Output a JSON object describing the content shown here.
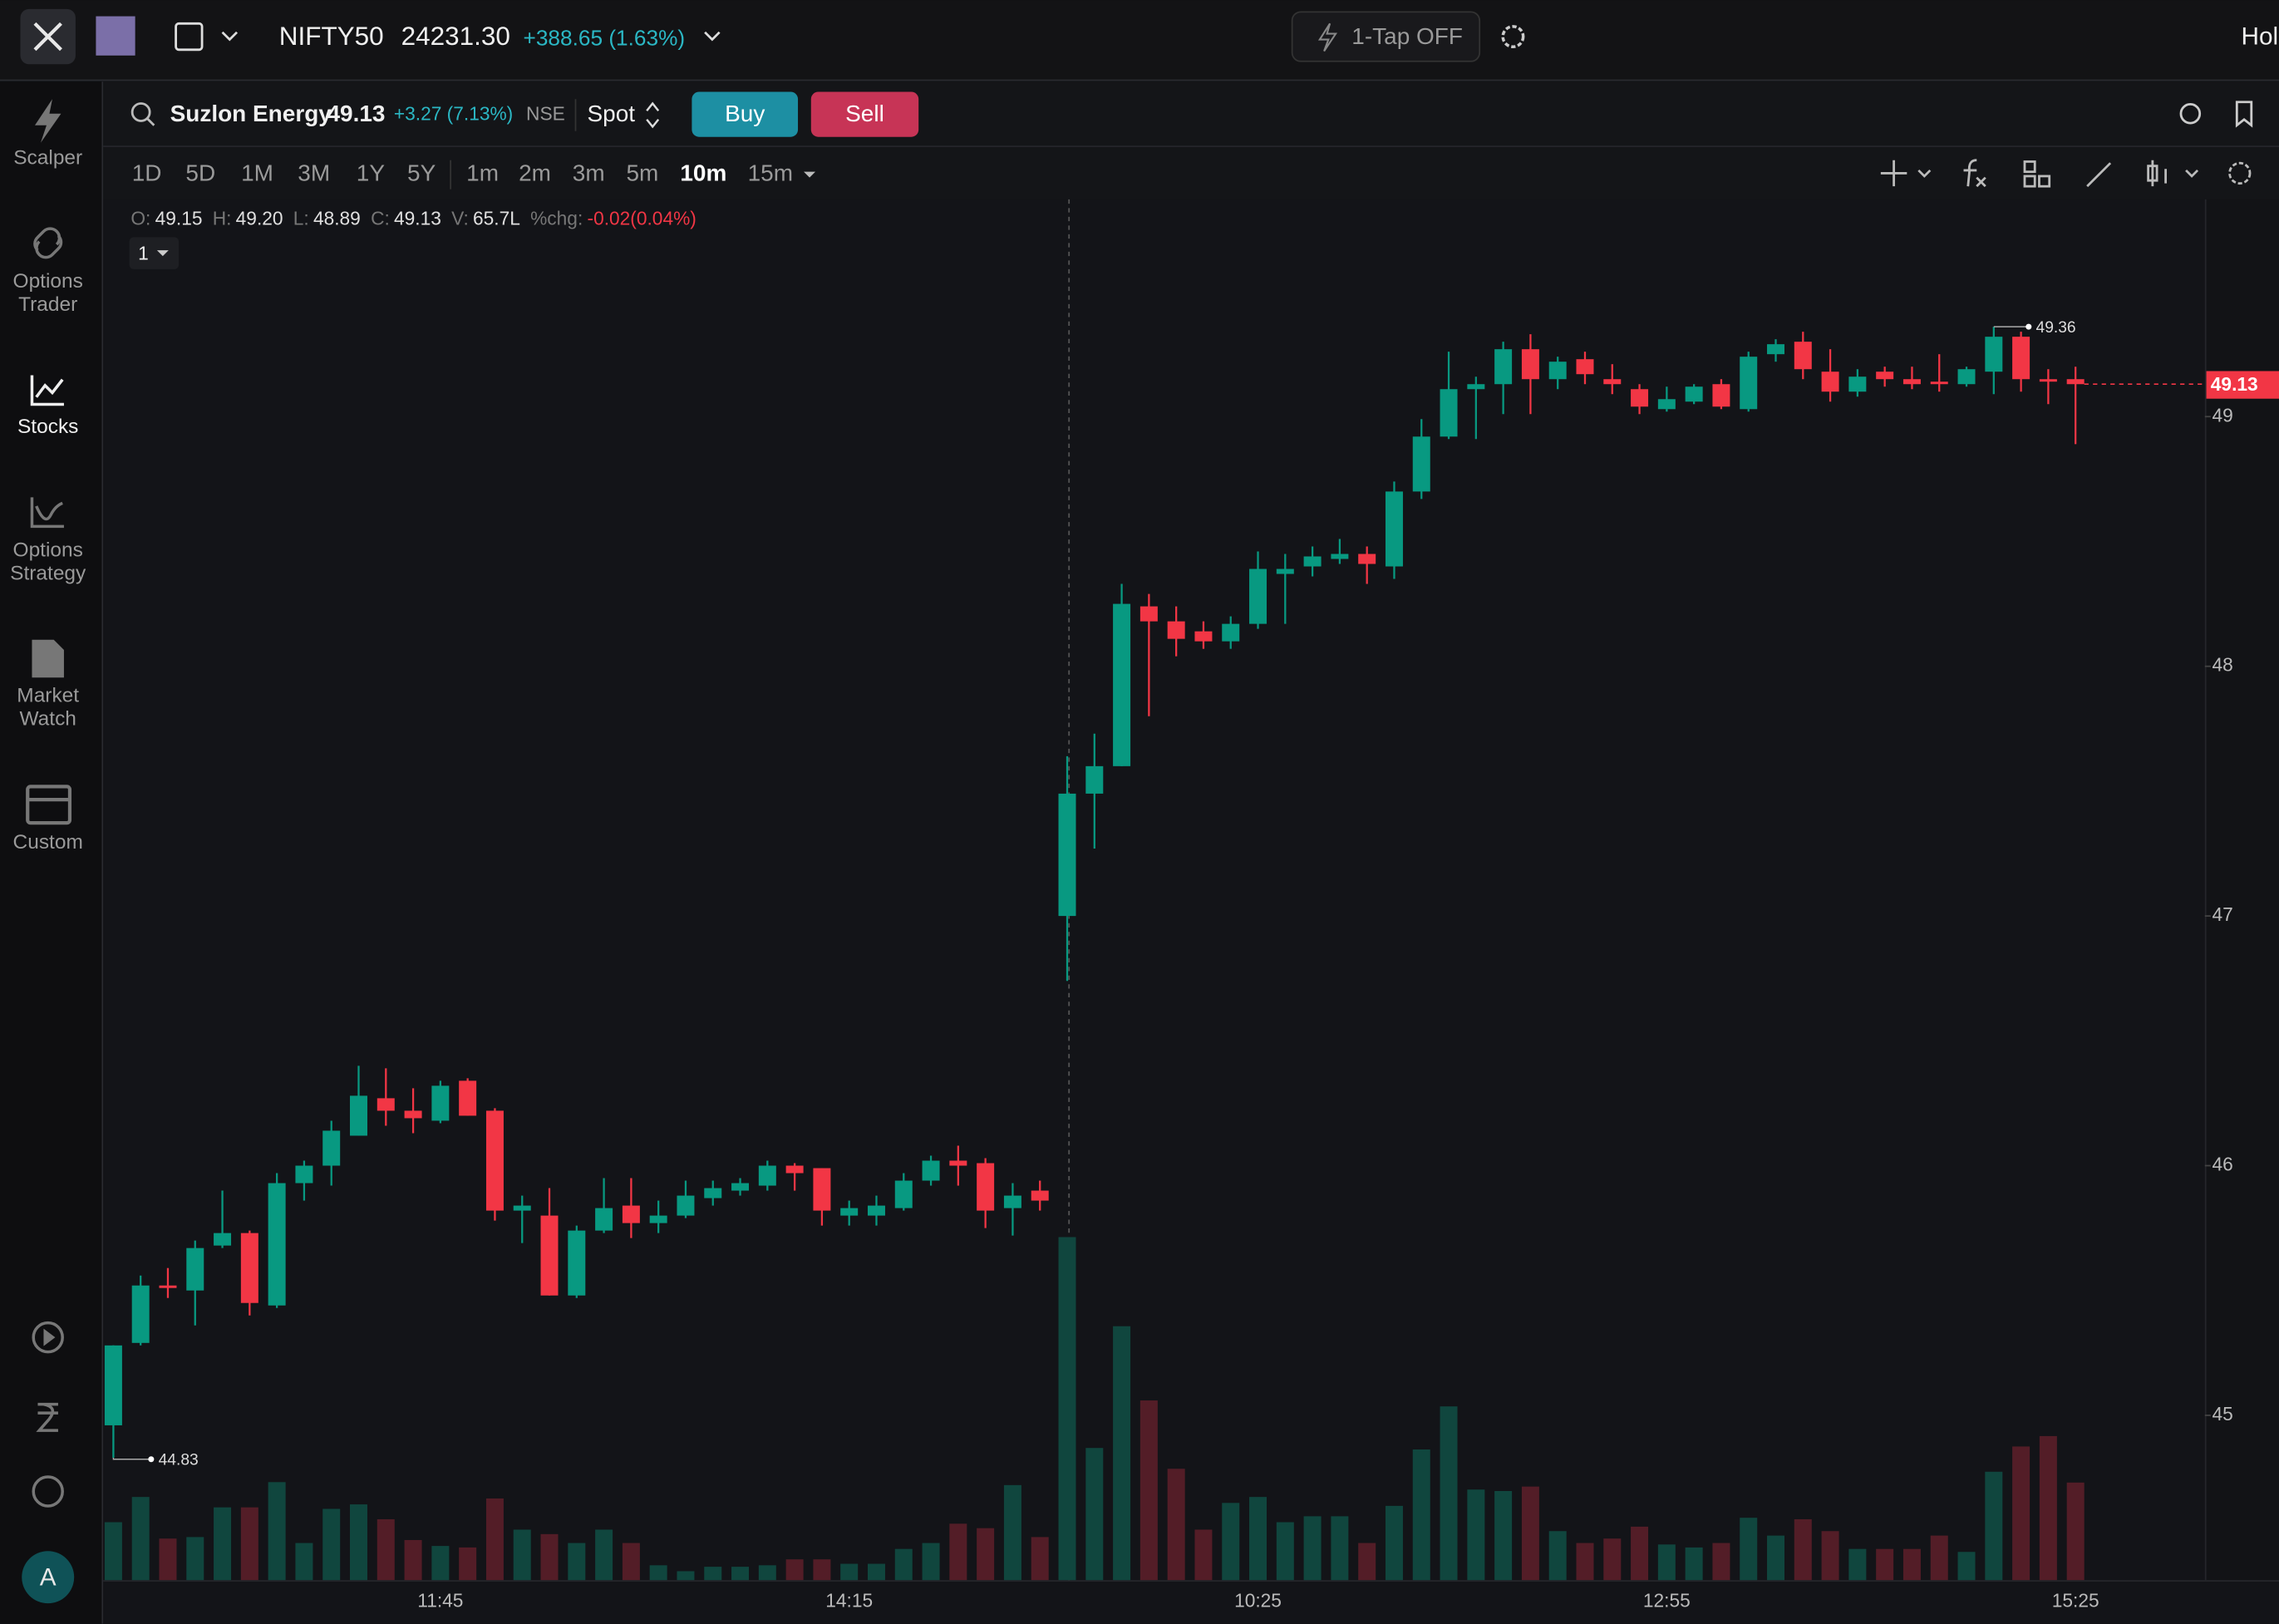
{
  "top_bar": {
    "index_name": "NIFTY50",
    "index_value": "24231.30",
    "index_change": "+388.65 (1.63%)",
    "one_tap": "1-Tap OFF",
    "cut_text": "Hol"
  },
  "sidebar": {
    "items": [
      {
        "lines": [
          "Scalper"
        ]
      },
      {
        "lines": [
          "Options",
          "Trader"
        ]
      },
      {
        "lines": [
          "Stocks"
        ]
      },
      {
        "lines": [
          "Options",
          "Strategy"
        ]
      },
      {
        "lines": [
          "Market",
          "Watch"
        ]
      },
      {
        "lines": [
          "Custom"
        ]
      }
    ],
    "avatar": "A"
  },
  "symbol_bar": {
    "name": "Suzlon Energy",
    "price": "49.13",
    "change": "+3.27 (7.13%)",
    "exchange": "NSE",
    "mode": "Spot",
    "buy": "Buy",
    "sell": "Sell"
  },
  "timeframes": {
    "ranges": [
      "1D",
      "5D",
      "1M",
      "3M",
      "1Y",
      "5Y"
    ],
    "intervals": [
      "1m",
      "2m",
      "3m",
      "5m",
      "10m",
      "15m"
    ],
    "active": "10m"
  },
  "legend": [
    {
      "key": "O:",
      "value": "49.15"
    },
    {
      "key": "H:",
      "value": "49.20"
    },
    {
      "key": "L:",
      "value": "48.89"
    },
    {
      "key": "C:",
      "value": "49.13"
    },
    {
      "key": "V:",
      "value": "65.7L"
    },
    {
      "key": "%chg:",
      "value": "-0.02(0.04%)"
    }
  ],
  "pane_selector": "1",
  "chart_data": {
    "type": "candlestick",
    "categories": [
      null,
      null,
      null,
      null,
      null,
      null,
      null,
      null,
      null,
      null,
      null,
      null,
      "11:45",
      null,
      null,
      null,
      null,
      null,
      null,
      null,
      null,
      null,
      null,
      null,
      null,
      null,
      null,
      "14:15",
      null,
      null,
      null,
      null,
      null,
      null,
      null,
      null,
      null,
      null,
      null,
      null,
      null,
      null,
      "10:25",
      null,
      null,
      null,
      null,
      null,
      null,
      null,
      null,
      null,
      null,
      null,
      null,
      null,
      null,
      "12:55",
      null,
      null,
      null,
      null,
      null,
      null,
      null,
      null,
      null,
      null,
      null,
      null,
      null,
      null,
      "15:25"
    ],
    "open": [
      44.96,
      45.29,
      45.52,
      45.5,
      45.68,
      45.73,
      45.44,
      45.93,
      46.0,
      46.12,
      46.27,
      46.22,
      46.18,
      46.34,
      46.22,
      45.82,
      45.8,
      45.48,
      45.74,
      45.84,
      45.77,
      45.8,
      45.87,
      45.9,
      45.92,
      46.0,
      45.99,
      45.8,
      45.8,
      45.83,
      45.94,
      46.02,
      46.01,
      45.83,
      45.9,
      47.0,
      47.49,
      47.6,
      48.24,
      48.18,
      48.14,
      48.1,
      48.17,
      48.37,
      48.4,
      48.43,
      48.45,
      48.4,
      48.7,
      48.92,
      49.11,
      49.13,
      49.27,
      49.15,
      49.23,
      49.15,
      49.11,
      49.03,
      49.06,
      49.13,
      49.03,
      49.25,
      49.3,
      49.18,
      49.1,
      49.18,
      49.15,
      49.14,
      49.13,
      49.18,
      49.32,
      49.15,
      49.15
    ],
    "high": [
      45.28,
      45.56,
      45.59,
      45.7,
      45.9,
      45.74,
      45.97,
      46.02,
      46.18,
      46.4,
      46.39,
      46.31,
      46.34,
      46.35,
      46.23,
      45.88,
      45.91,
      45.76,
      45.95,
      45.95,
      45.86,
      45.94,
      45.94,
      45.95,
      46.02,
      46.01,
      45.99,
      45.86,
      45.88,
      45.97,
      46.04,
      46.08,
      46.03,
      45.93,
      45.94,
      47.64,
      47.73,
      48.33,
      48.29,
      48.24,
      48.18,
      48.2,
      48.46,
      48.45,
      48.48,
      48.51,
      48.48,
      48.74,
      48.99,
      49.26,
      49.16,
      49.3,
      49.33,
      49.24,
      49.26,
      49.21,
      49.13,
      49.12,
      49.13,
      49.15,
      49.26,
      49.31,
      49.34,
      49.27,
      49.19,
      49.2,
      49.2,
      49.25,
      49.2,
      49.36,
      49.34,
      49.19,
      49.2
    ],
    "low": [
      44.83,
      45.28,
      45.47,
      45.36,
      45.67,
      45.4,
      45.43,
      45.86,
      45.92,
      46.12,
      46.16,
      46.13,
      46.17,
      46.2,
      45.78,
      45.69,
      45.48,
      45.47,
      45.73,
      45.71,
      45.73,
      45.79,
      45.84,
      45.88,
      45.9,
      45.9,
      45.76,
      45.76,
      45.76,
      45.82,
      45.92,
      45.92,
      45.75,
      45.72,
      45.82,
      46.74,
      47.27,
      47.6,
      47.8,
      48.04,
      48.07,
      48.07,
      48.15,
      48.17,
      48.36,
      48.41,
      48.33,
      48.35,
      48.67,
      48.91,
      48.91,
      49.01,
      49.01,
      49.11,
      49.13,
      49.09,
      49.01,
      49.02,
      49.05,
      49.03,
      49.02,
      49.22,
      49.15,
      49.06,
      49.08,
      49.12,
      49.11,
      49.1,
      49.12,
      49.09,
      49.1,
      49.05,
      48.89
    ],
    "close": [
      45.28,
      45.52,
      45.51,
      45.67,
      45.73,
      45.45,
      45.93,
      46.0,
      46.14,
      46.28,
      46.22,
      46.19,
      46.32,
      46.2,
      45.82,
      45.84,
      45.48,
      45.74,
      45.83,
      45.77,
      45.8,
      45.88,
      45.91,
      45.93,
      46.0,
      45.97,
      45.82,
      45.83,
      45.84,
      45.94,
      46.02,
      46.0,
      45.82,
      45.88,
      45.86,
      47.49,
      47.6,
      48.25,
      48.18,
      48.11,
      48.1,
      48.17,
      48.39,
      48.39,
      48.44,
      48.45,
      48.41,
      48.7,
      48.92,
      49.11,
      49.13,
      49.27,
      49.15,
      49.22,
      49.17,
      49.13,
      49.04,
      49.07,
      49.12,
      49.04,
      49.24,
      49.29,
      49.19,
      49.1,
      49.16,
      49.15,
      49.13,
      49.13,
      49.19,
      49.32,
      49.15,
      49.14,
      49.13
    ],
    "volume": [
      39,
      56,
      28,
      29,
      49,
      49,
      66,
      25,
      48,
      51,
      41,
      27,
      23,
      22,
      55,
      34,
      31,
      25,
      34,
      25,
      10,
      6,
      9,
      9,
      10,
      14,
      14,
      11,
      11,
      21,
      25,
      38,
      35,
      64,
      29,
      231,
      89,
      171,
      121,
      75,
      34,
      52,
      56,
      39,
      43,
      43,
      25,
      50,
      88,
      117,
      61,
      60,
      63,
      33,
      25,
      28,
      36,
      24,
      22,
      25,
      42,
      30,
      41,
      33,
      21,
      21,
      21,
      30,
      19,
      73,
      90,
      97,
      65.7
    ],
    "ylim": [
      44.34,
      49.87
    ],
    "yticks": [
      45,
      46,
      47,
      48,
      49
    ],
    "grid": false,
    "up_color": "#089981",
    "down_color": "#f23645",
    "volume_up_color": "#10463e",
    "volume_down_color": "#531d27"
  }
}
